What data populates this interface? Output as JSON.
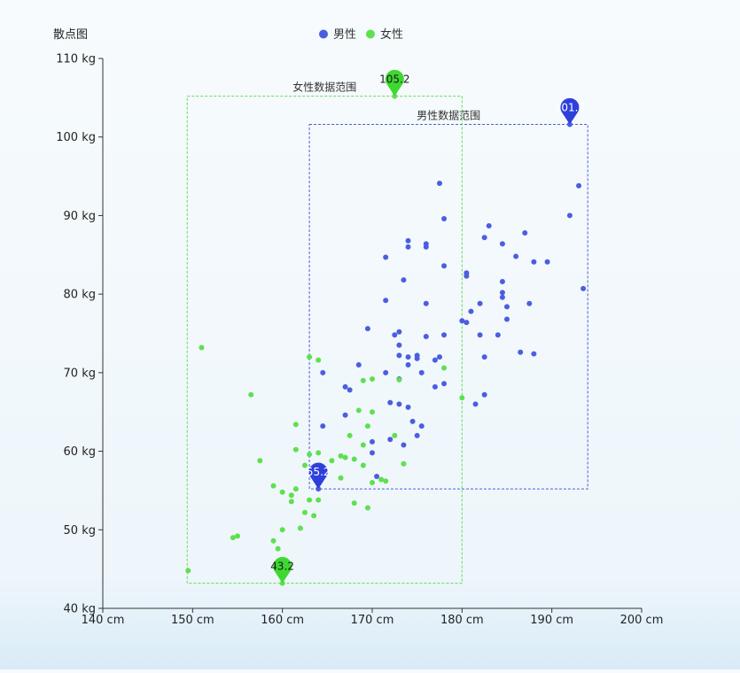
{
  "chart_data": {
    "type": "scatter",
    "ylabel": "散点图",
    "xlim": [
      140,
      200
    ],
    "ylim": [
      40,
      110
    ],
    "x_ticks": [
      140,
      150,
      160,
      170,
      180,
      190,
      200
    ],
    "y_ticks": [
      40,
      50,
      60,
      70,
      80,
      90,
      100,
      110
    ],
    "x_unit": " cm",
    "y_unit": " kg",
    "tick_labels_x": [
      "140 cm",
      "150 cm",
      "160 cm",
      "170 cm",
      "180 cm",
      "190 cm",
      "200 cm"
    ],
    "tick_labels_y": [
      "40 kg",
      "50 kg",
      "60 kg",
      "70 kg",
      "80 kg",
      "90 kg",
      "100 kg",
      "110 kg"
    ],
    "legend": {
      "position": "top-center"
    },
    "grid": false,
    "series": [
      {
        "name": "男性",
        "color": "#4b5ee0",
        "points": [
          [
            164,
            55.2
          ],
          [
            164.5,
            63.2
          ],
          [
            164.5,
            70
          ],
          [
            167,
            68.2
          ],
          [
            167.5,
            67.8
          ],
          [
            167,
            64.6
          ],
          [
            168.5,
            71
          ],
          [
            169.5,
            75.6
          ],
          [
            170,
            61.2
          ],
          [
            170,
            59.8
          ],
          [
            170.5,
            56.8
          ],
          [
            171.5,
            79.2
          ],
          [
            171.5,
            84.7
          ],
          [
            171.5,
            70
          ],
          [
            172,
            66.2
          ],
          [
            172,
            61.5
          ],
          [
            172.5,
            74.8
          ],
          [
            173,
            75.2
          ],
          [
            173,
            73.5
          ],
          [
            173,
            72.2
          ],
          [
            173,
            66
          ],
          [
            173,
            69.2
          ],
          [
            173.5,
            60.8
          ],
          [
            173.5,
            81.8
          ],
          [
            174,
            86
          ],
          [
            174,
            86.8
          ],
          [
            174,
            72
          ],
          [
            174,
            71
          ],
          [
            174,
            65.6
          ],
          [
            174.5,
            63.8
          ],
          [
            175,
            62
          ],
          [
            175,
            72.2
          ],
          [
            175,
            71.8
          ],
          [
            175.5,
            70
          ],
          [
            175.5,
            63.2
          ],
          [
            176,
            78.8
          ],
          [
            176,
            74.6
          ],
          [
            176,
            86.4
          ],
          [
            176,
            86
          ],
          [
            177,
            71.6
          ],
          [
            177,
            68.2
          ],
          [
            177.5,
            94.1
          ],
          [
            177.5,
            72
          ],
          [
            178,
            89.6
          ],
          [
            178,
            83.6
          ],
          [
            178,
            74.8
          ],
          [
            178,
            68.6
          ],
          [
            180,
            76.6
          ],
          [
            180.5,
            82.7
          ],
          [
            180.5,
            82.3
          ],
          [
            180.5,
            76.4
          ],
          [
            181,
            77.8
          ],
          [
            181.5,
            66
          ],
          [
            182,
            78.8
          ],
          [
            182,
            74.8
          ],
          [
            182.5,
            72
          ],
          [
            182.5,
            67.2
          ],
          [
            182.5,
            87.2
          ],
          [
            183,
            88.7
          ],
          [
            184,
            74.8
          ],
          [
            184.5,
            86.4
          ],
          [
            184.5,
            81.6
          ],
          [
            184.5,
            79.6
          ],
          [
            184.5,
            80.2
          ],
          [
            185,
            78.4
          ],
          [
            185,
            76.8
          ],
          [
            186,
            84.8
          ],
          [
            186.5,
            72.6
          ],
          [
            187,
            87.8
          ],
          [
            187.5,
            78.8
          ],
          [
            188,
            84.1
          ],
          [
            188,
            72.4
          ],
          [
            189.5,
            84.1
          ],
          [
            192,
            101.6
          ],
          [
            192,
            90
          ],
          [
            193,
            93.8
          ],
          [
            193.5,
            80.7
          ]
        ],
        "markers": {
          "max": 101.6,
          "min": 55.2
        },
        "range_label": "男性数据范围",
        "range_box": {
          "x": [
            163,
            194
          ],
          "y": [
            55.2,
            101.6
          ]
        }
      },
      {
        "name": "女性",
        "color": "#5ee04f",
        "points": [
          [
            149.5,
            44.8
          ],
          [
            151,
            73.2
          ],
          [
            154.5,
            49
          ],
          [
            155,
            49.2
          ],
          [
            156.5,
            67.2
          ],
          [
            157.5,
            58.8
          ],
          [
            159,
            55.6
          ],
          [
            159,
            48.6
          ],
          [
            159.5,
            47.6
          ],
          [
            160,
            43.2
          ],
          [
            160,
            50
          ],
          [
            160,
            54.8
          ],
          [
            161,
            54.4
          ],
          [
            161,
            53.6
          ],
          [
            161.5,
            55.2
          ],
          [
            161.5,
            63.4
          ],
          [
            161.5,
            60.2
          ],
          [
            162,
            50.2
          ],
          [
            162.5,
            52.2
          ],
          [
            162.5,
            58.2
          ],
          [
            163,
            72
          ],
          [
            163,
            59.6
          ],
          [
            163,
            53.8
          ],
          [
            163.5,
            51.8
          ],
          [
            163.5,
            57
          ],
          [
            164,
            71.6
          ],
          [
            164,
            59.8
          ],
          [
            164,
            53.8
          ],
          [
            165.5,
            58.8
          ],
          [
            166.5,
            59.4
          ],
          [
            166.5,
            56.6
          ],
          [
            167,
            59.2
          ],
          [
            167.5,
            62
          ],
          [
            168,
            59
          ],
          [
            168,
            53.4
          ],
          [
            168.5,
            65.2
          ],
          [
            169,
            69
          ],
          [
            169,
            58.2
          ],
          [
            169,
            60.8
          ],
          [
            169.5,
            63.2
          ],
          [
            169.5,
            52.8
          ],
          [
            170,
            69.2
          ],
          [
            170,
            56
          ],
          [
            170,
            65
          ],
          [
            171,
            56.4
          ],
          [
            171.5,
            56.2
          ],
          [
            172.5,
            62
          ],
          [
            173,
            69.1
          ],
          [
            173.5,
            58.4
          ],
          [
            178,
            70.6
          ],
          [
            180,
            66.8
          ],
          [
            172.5,
            105.2
          ]
        ],
        "markers": {
          "max": 105.2,
          "min": 43.2
        },
        "range_label": "女性数据范围",
        "range_box": {
          "x": [
            149.4,
            180
          ],
          "y": [
            43.2,
            105.2
          ]
        }
      }
    ],
    "pin_labels": [
      {
        "series": "女性",
        "x": 172.5,
        "y": 105.2,
        "text": "105.2"
      },
      {
        "series": "女性",
        "x": 160,
        "y": 43.2,
        "text": "43.2"
      },
      {
        "series": "男性",
        "x": 192,
        "y": 101.6,
        "text": "101.6"
      },
      {
        "series": "男性",
        "x": 164,
        "y": 55.2,
        "text": "55.2"
      }
    ]
  }
}
